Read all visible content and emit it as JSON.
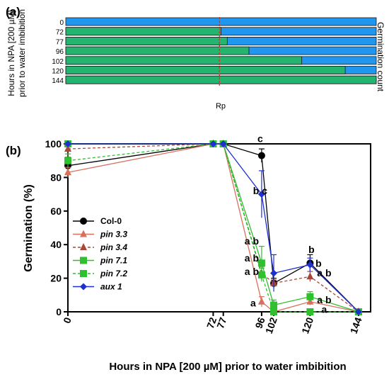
{
  "panel_a": {
    "label": "(a)",
    "ylabel_line1": "Hours in NPA [200 µM]",
    "ylabel_line2": "prior to water imbibition",
    "right_label": "Germination count",
    "marker_label": "Rp",
    "rows": [
      {
        "label": "0",
        "green_fraction": 0.0
      },
      {
        "label": "72",
        "green_fraction": 0.5
      },
      {
        "label": "77",
        "green_fraction": 0.52
      },
      {
        "label": "96",
        "green_fraction": 0.59
      },
      {
        "label": "102",
        "green_fraction": 0.76
      },
      {
        "label": "120",
        "green_fraction": 0.9
      },
      {
        "label": "144",
        "green_fraction": 1.0
      }
    ],
    "marker_fraction": 0.495,
    "colors": {
      "green": "#25b46f",
      "blue": "#2196ee",
      "marker": "#c0392b"
    }
  },
  "panel_b": {
    "label": "(b)",
    "letters": [
      {
        "text": "c",
        "x": 96,
        "y": 101
      },
      {
        "text": "b c",
        "x": 96,
        "y": 70
      },
      {
        "text": "a b",
        "x": 96,
        "y": 40
      },
      {
        "text": "a b",
        "x": 96,
        "y": 30
      },
      {
        "text": "a b",
        "x": 96,
        "y": 22
      },
      {
        "text": "a",
        "x": 96,
        "y": 4
      },
      {
        "text": "b",
        "x": 120,
        "y": 35
      },
      {
        "text": "b",
        "x": 120,
        "y": 28
      },
      {
        "text": "a b",
        "x": 120,
        "y": 22
      },
      {
        "text": "a b",
        "x": 120,
        "y": 6
      },
      {
        "text": "a",
        "x": 120,
        "y": 1
      }
    ]
  },
  "chart_data": {
    "type": "line",
    "xlabel": "Hours in NPA [200 µM] prior to water imbibition",
    "ylabel": "Germination (%)",
    "xlim": [
      0,
      150
    ],
    "ylim": [
      0,
      100
    ],
    "xticks": [
      0,
      72,
      77,
      96,
      102,
      120,
      144
    ],
    "yticks": [
      0,
      20,
      40,
      60,
      80,
      100
    ],
    "legend_position": "left-middle",
    "series": [
      {
        "name": "Col-0",
        "style": "solid",
        "marker": "circle",
        "color": "#000000",
        "x": [
          0,
          72,
          77,
          96,
          102,
          120,
          144
        ],
        "y": [
          87,
          100,
          100,
          93,
          17,
          29,
          0
        ],
        "err": [
          5,
          0,
          0,
          4,
          3,
          5,
          0
        ]
      },
      {
        "name": "pin 3.3",
        "style": "solid",
        "marker": "triangle",
        "color": "#d9705f",
        "x": [
          0,
          72,
          77,
          96,
          102,
          120,
          144
        ],
        "y": [
          83,
          100,
          100,
          6,
          0,
          6,
          0
        ],
        "err": [
          3,
          0,
          0,
          3,
          0,
          2,
          0
        ]
      },
      {
        "name": "pin 3.4",
        "style": "dashed",
        "marker": "triangle",
        "color": "#a9473a",
        "x": [
          0,
          72,
          77,
          96,
          102,
          120,
          144
        ],
        "y": [
          97,
          100,
          100,
          23,
          17,
          21,
          0
        ],
        "err": [
          3,
          0,
          0,
          4,
          2,
          3,
          0
        ]
      },
      {
        "name": "pin 7.1",
        "style": "solid",
        "marker": "square",
        "color": "#2fbf2f",
        "x": [
          0,
          72,
          77,
          96,
          102,
          120,
          144
        ],
        "y": [
          100,
          100,
          100,
          29,
          4,
          9,
          0
        ],
        "err": [
          0,
          0,
          0,
          10,
          3,
          3,
          0
        ]
      },
      {
        "name": "pin 7.2",
        "style": "dashed",
        "marker": "square",
        "color": "#2fbf2f",
        "x": [
          0,
          72,
          77,
          96,
          102,
          120,
          144
        ],
        "y": [
          90,
          100,
          100,
          22,
          0,
          0,
          0
        ],
        "err": [
          4,
          0,
          0,
          4,
          0,
          0,
          0
        ]
      },
      {
        "name": "aux 1",
        "style": "solid",
        "marker": "diamond",
        "color": "#1f2fd1",
        "x": [
          0,
          72,
          77,
          96,
          102,
          120,
          144
        ],
        "y": [
          100,
          100,
          100,
          70,
          23,
          28,
          0
        ],
        "err": [
          0,
          0,
          0,
          14,
          11,
          4,
          0
        ]
      }
    ]
  }
}
